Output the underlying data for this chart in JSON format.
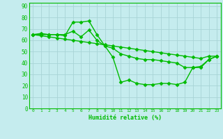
{
  "xlabel": "Humidité relative (%)",
  "background_color": "#c5ecee",
  "grid_color": "#a8d4d6",
  "line_color": "#00bb00",
  "marker": "D",
  "markersize": 2.5,
  "linewidth": 1.0,
  "x_ticks": [
    0,
    1,
    2,
    3,
    4,
    5,
    6,
    7,
    8,
    9,
    10,
    11,
    12,
    13,
    14,
    15,
    16,
    17,
    18,
    19,
    20,
    21,
    22,
    23
  ],
  "y_ticks": [
    0,
    10,
    20,
    30,
    40,
    50,
    60,
    70,
    80,
    90
  ],
  "xlim": [
    -0.5,
    23.5
  ],
  "ylim": [
    0,
    93
  ],
  "series": [
    [
      65,
      66,
      65,
      65,
      64,
      76,
      76,
      77,
      65,
      55,
      45,
      23,
      25,
      22,
      21,
      21,
      22,
      22,
      21,
      23,
      36,
      36,
      43,
      46
    ],
    [
      65,
      65,
      65,
      65,
      65,
      68,
      63,
      69,
      60,
      55,
      53,
      48,
      46,
      44,
      43,
      43,
      42,
      41,
      40,
      36,
      36,
      37,
      43,
      46
    ],
    [
      65,
      64,
      63,
      62,
      61,
      60,
      59,
      58,
      57,
      56,
      55,
      54,
      53,
      52,
      51,
      50,
      49,
      48,
      47,
      46,
      45,
      44,
      46,
      46
    ]
  ]
}
